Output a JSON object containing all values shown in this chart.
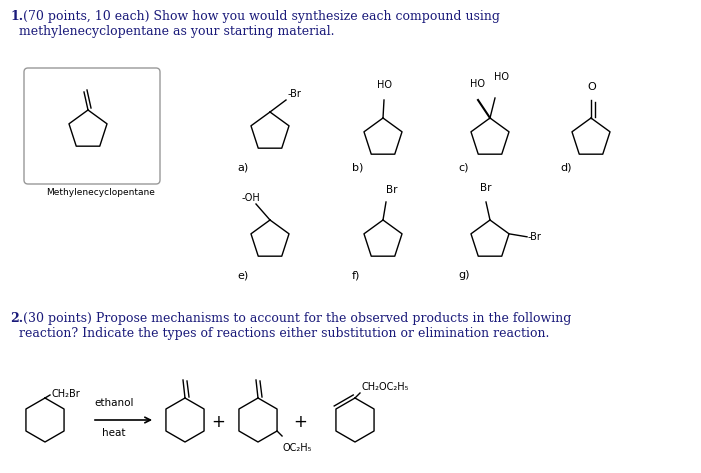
{
  "title1_bold": "1.",
  "title1_rest": " (70 points, 10 each) Show how you would synthesize each compound using\nmethylenecyclopentane as your starting material.",
  "title2_bold": "2.",
  "title2_rest": " (30 points) Propose mechanisms to account for the observed products in the following\nreaction? Indicate the types of reactions either substitution or elimination reaction.",
  "bg_color": "#ffffff",
  "text_color": "#1a1a7a",
  "fig_width": 7.01,
  "fig_height": 4.73,
  "dpi": 100
}
